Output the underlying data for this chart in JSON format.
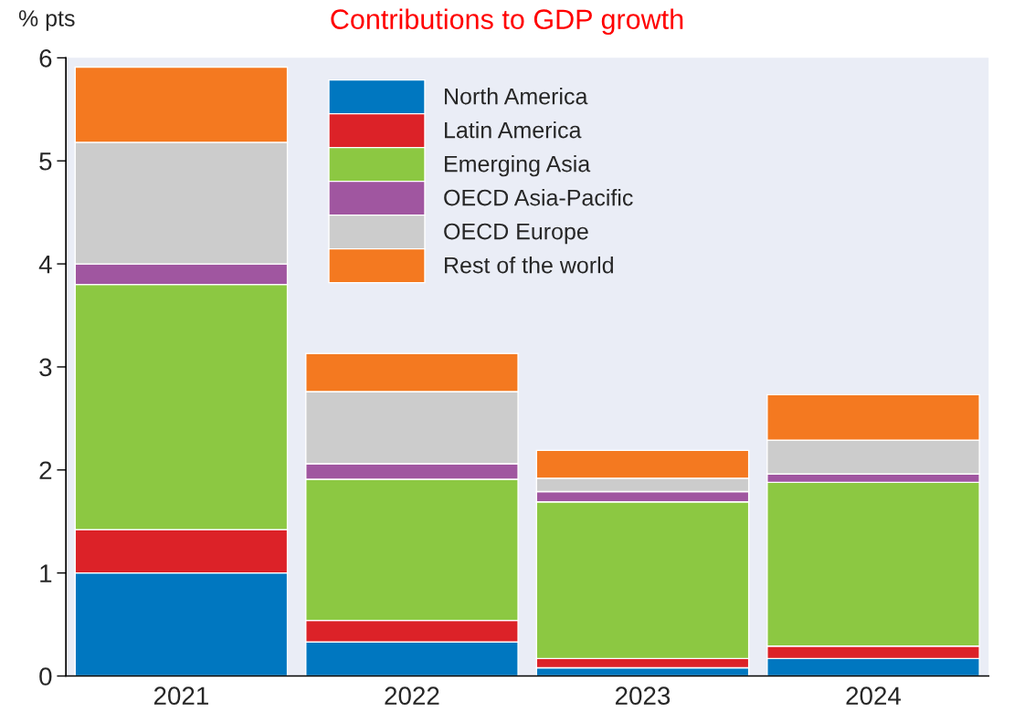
{
  "chart_data": {
    "type": "bar",
    "title": "Contributions to GDP growth",
    "ylabel": "% pts",
    "categories": [
      "2021",
      "2022",
      "2023",
      "2024"
    ],
    "stacked": true,
    "series": [
      {
        "name": "North America",
        "color": "#0077c0",
        "values": [
          1.0,
          0.33,
          0.08,
          0.17
        ]
      },
      {
        "name": "Latin America",
        "color": "#dc2228",
        "values": [
          0.42,
          0.21,
          0.09,
          0.12
        ]
      },
      {
        "name": "Emerging Asia",
        "color": "#8cc842",
        "values": [
          2.38,
          1.37,
          1.52,
          1.59
        ]
      },
      {
        "name": "OECD Asia-Pacific",
        "color": "#a056a0",
        "values": [
          0.2,
          0.15,
          0.1,
          0.08
        ]
      },
      {
        "name": "OECD Europe",
        "color": "#cccccc",
        "values": [
          1.18,
          0.7,
          0.13,
          0.33
        ]
      },
      {
        "name": "Rest of the world",
        "color": "#f47920",
        "values": [
          0.73,
          0.37,
          0.27,
          0.44
        ]
      }
    ],
    "ylim": [
      0,
      6
    ],
    "yticks": [
      0,
      1,
      2,
      3,
      4,
      5,
      6
    ],
    "grid": false,
    "legend": "top"
  }
}
